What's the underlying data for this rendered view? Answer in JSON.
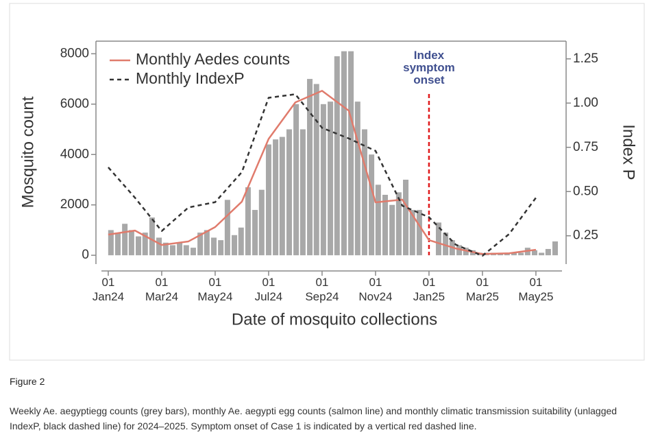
{
  "chart_data": {
    "type": "bar",
    "x_label": "Date of mosquito collections",
    "y_label": "Mosquito count",
    "y2_label": "Index P",
    "xlim": [
      -0.46,
      17.13
    ],
    "xticks": [
      {
        "value": 0,
        "label": "01\nJan24"
      },
      {
        "value": 2,
        "label": "01\nMar24"
      },
      {
        "value": 4,
        "label": "01\nMay24"
      },
      {
        "value": 6,
        "label": "01\nJul24"
      },
      {
        "value": 8,
        "label": "01\nSep24"
      },
      {
        "value": 10,
        "label": "01\nNov24"
      },
      {
        "value": 12,
        "label": "01\nJan25"
      },
      {
        "value": 14,
        "label": "01\nMar25"
      },
      {
        "value": 16,
        "label": "01\nMay25"
      }
    ],
    "ylim": [
      -350,
      8500
    ],
    "yticks": [
      0,
      2000,
      4000,
      6000,
      8000
    ],
    "y2lim": [
      0.09,
      1.35
    ],
    "y2ticks": [
      0.25,
      {
        "value": 0.5,
        "label": "0.50"
      },
      0.75,
      {
        "value": 1,
        "label": "1.00"
      },
      1.25
    ],
    "bars": {
      "color": "#a8a8a8",
      "x": [
        0.1,
        0.36,
        0.62,
        0.87,
        1.13,
        1.38,
        1.64,
        1.9,
        2.15,
        2.41,
        2.67,
        2.92,
        3.18,
        3.44,
        3.69,
        3.95,
        4.21,
        4.46,
        4.72,
        4.97,
        5.23,
        5.49,
        5.74,
        6.0,
        6.26,
        6.51,
        6.77,
        7.03,
        7.28,
        7.54,
        7.79,
        8.05,
        8.31,
        8.56,
        8.82,
        9.08,
        9.33,
        9.59,
        9.85,
        10.1,
        10.36,
        10.62,
        10.87,
        11.13,
        11.38,
        11.64,
        12.36,
        12.62,
        12.87,
        13.13,
        13.38,
        13.64,
        13.9,
        14.15,
        14.41,
        14.67,
        14.92,
        15.18,
        15.44,
        15.69,
        15.95,
        16.21,
        16.46,
        16.72
      ],
      "values": [
        1000,
        900,
        1250,
        1000,
        750,
        900,
        1500,
        700,
        500,
        400,
        500,
        400,
        300,
        900,
        1000,
        700,
        600,
        2200,
        800,
        1100,
        2700,
        1800,
        2600,
        4400,
        4600,
        4700,
        5000,
        6000,
        5000,
        7000,
        6800,
        6000,
        6100,
        7900,
        8100,
        8100,
        6100,
        5000,
        4000,
        2800,
        2400,
        2000,
        2500,
        3000,
        1800,
        1800,
        1300,
        900,
        600,
        400,
        300,
        200,
        100,
        100,
        100,
        100,
        100,
        100,
        100,
        300,
        200,
        100,
        250,
        550
      ]
    },
    "series": [
      {
        "name": "Monthly Aedes counts",
        "type": "line",
        "color": "#e07b6c",
        "x": [
          0,
          1,
          2,
          3,
          4,
          5,
          6,
          7,
          8,
          9,
          10,
          11,
          12,
          13,
          14,
          15,
          16
        ],
        "values": [
          820,
          980,
          410,
          550,
          1120,
          2130,
          4620,
          6070,
          6530,
          5740,
          2100,
          2210,
          600,
          270,
          50,
          80,
          220
        ]
      },
      {
        "name": "Monthly IndexP",
        "type": "line",
        "color": "#333333",
        "dashed": true,
        "axis": "y2",
        "x": [
          0,
          1,
          2,
          3,
          4,
          5,
          6,
          7,
          8,
          9,
          10,
          11,
          12,
          13,
          14,
          15,
          16
        ],
        "values": [
          0.637,
          0.465,
          0.277,
          0.41,
          0.44,
          0.61,
          1.03,
          1.05,
          0.86,
          0.8,
          0.73,
          0.42,
          0.355,
          0.2,
          0.137,
          0.26,
          0.465
        ]
      }
    ],
    "annotation": {
      "text": "Index\nsymptom\nonset",
      "x": 12,
      "color": "#e0191b"
    }
  },
  "caption": {
    "label": "Figure 2",
    "text": "Weekly Ae. aegyptiegg counts (grey bars), monthly Ae. aegypti egg counts (salmon line) and monthly climatic transmission suitability (unlagged IndexP, black dashed line) for 2024–2025. Symptom onset of Case 1 is indicated by a vertical red dashed line."
  }
}
